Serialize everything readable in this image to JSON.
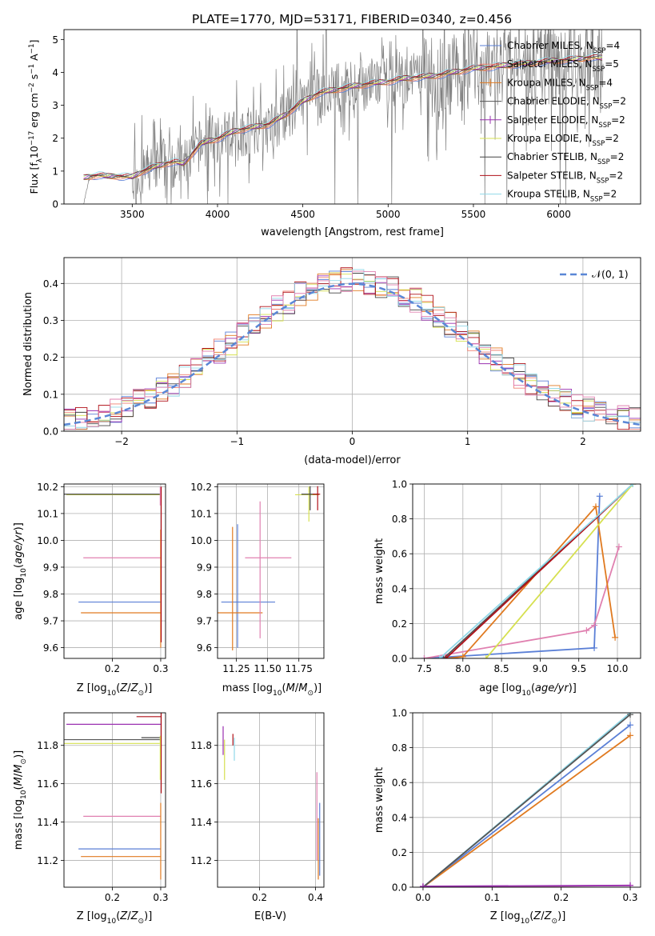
{
  "figure": {
    "title": "PLATE=1770, MJD=53171, FIBERID=0340, z=0.456"
  },
  "colors": {
    "chabrier_miles": "#5a7fd6",
    "salpeter_miles": "#f08070",
    "kroupa_miles": "#e07a20",
    "chabrier_elodie": "#555555",
    "salpeter_elodie": "#9a30b0",
    "kroupa_elodie": "#d6e050",
    "chabrier_stelib": "#444444",
    "salpeter_stelib": "#b01018",
    "kroupa_stelib": "#90d8e8",
    "gaussian": "#5a87d6",
    "spectrum": "#808080",
    "pink": "#e080b0",
    "grid": "#b0b0b0"
  },
  "chart_data": [
    {
      "id": "spectrum",
      "type": "line",
      "title": "PLATE=1770, MJD=53171, FIBERID=0340, z=0.456",
      "xlabel": "wavelength [Angstrom, rest frame]",
      "ylabel": "Flux [f_λ 10^-17 erg cm^-2 s^-1 A^-1]",
      "xlim": [
        3100,
        6480
      ],
      "ylim": [
        0,
        5.3
      ],
      "xticks": [
        3500,
        4000,
        4500,
        5000,
        5500,
        6000
      ],
      "yticks": [
        0,
        1,
        2,
        3,
        4,
        5
      ],
      "grid": false,
      "legend_position": "top-right",
      "legend": [
        "Chabrier MILES, N_SSP=4",
        "Salpeter MILES, N_SSP=5",
        "Kroupa MILES, N_SSP=4",
        "Chabrier ELODIE, N_SSP=2",
        "Salpeter ELODIE, N_SSP=2",
        "Kroupa ELODIE, N_SSP=2",
        "Chabrier STELIB, N_SSP=2",
        "Salpeter STELIB, N_SSP=2",
        "Kroupa STELIB, N_SSP=2"
      ],
      "series": [
        {
          "name": "data",
          "x": [
            3215,
            3250,
            3300,
            3350,
            3400,
            3450,
            3500,
            3550,
            3600,
            3650,
            3700,
            3750,
            3800,
            3850,
            3900,
            3950,
            4000,
            4100,
            4200,
            4300,
            4400,
            4500,
            4600,
            4700,
            4800,
            4900,
            5000,
            5100,
            5200,
            5300,
            5400,
            5500,
            5600,
            5700,
            5800,
            5900,
            6000,
            6100,
            6200,
            6260
          ],
          "y": [
            0.0,
            0.8,
            0.88,
            0.83,
            0.86,
            0.82,
            0.8,
            0.95,
            1.05,
            1.15,
            1.25,
            1.3,
            1.2,
            1.5,
            1.8,
            1.9,
            1.95,
            2.2,
            2.3,
            2.4,
            2.7,
            3.1,
            3.4,
            3.5,
            3.6,
            3.65,
            3.7,
            3.8,
            3.85,
            3.9,
            4.0,
            4.1,
            4.15,
            4.2,
            4.25,
            4.3,
            4.35,
            4.4,
            4.45,
            4.4
          ]
        },
        {
          "name": "model",
          "x": [
            3215,
            3250,
            3300,
            3350,
            3400,
            3450,
            3500,
            3550,
            3600,
            3650,
            3700,
            3750,
            3800,
            3850,
            3900,
            3950,
            4000,
            4100,
            4200,
            4300,
            4400,
            4500,
            4600,
            4700,
            4800,
            4900,
            5000,
            5100,
            5200,
            5300,
            5400,
            5500,
            5600,
            5700,
            5800,
            5900,
            6000,
            6100,
            6200,
            6260
          ],
          "y": [
            0.8,
            0.84,
            0.87,
            0.84,
            0.85,
            0.83,
            0.82,
            0.97,
            1.07,
            1.16,
            1.24,
            1.28,
            1.22,
            1.52,
            1.82,
            1.92,
            1.98,
            2.22,
            2.32,
            2.42,
            2.72,
            3.12,
            3.38,
            3.48,
            3.58,
            3.66,
            3.72,
            3.82,
            3.86,
            3.92,
            4.02,
            4.12,
            4.16,
            4.22,
            4.26,
            4.32,
            4.36,
            4.4,
            4.46,
            4.42
          ]
        }
      ]
    },
    {
      "id": "residuals",
      "type": "line",
      "xlabel": "(data-model)/error",
      "ylabel": "Normed distribution",
      "xlim": [
        -2.5,
        2.5
      ],
      "ylim": [
        0,
        0.47
      ],
      "xticks": [
        -2,
        -1,
        0,
        1,
        2
      ],
      "yticks": [
        0.0,
        0.1,
        0.2,
        0.3,
        0.4
      ],
      "grid": true,
      "legend_position": "top-right",
      "legend": [
        "𝒩(0, 1)"
      ],
      "series": [
        {
          "name": "𝒩(0, 1)",
          "style": "dashed",
          "mean": 0,
          "sigma": 1
        }
      ],
      "histogram_bin_width": 0.1,
      "histogram_note_count": 9
    },
    {
      "id": "age_vs_Z",
      "type": "scatter",
      "xlabel": "Z [log10(Z/Z_sun)]",
      "ylabel": "age [log10(age/yr)]",
      "xlim": [
        0.1,
        0.31
      ],
      "ylim": [
        9.56,
        10.21
      ],
      "xticks": [
        0.2,
        0.3
      ],
      "yticks": [
        9.6,
        9.7,
        9.8,
        9.9,
        10.0,
        10.1,
        10.2
      ],
      "grid": true,
      "hlines": [
        {
          "y": 10.17,
          "x0": 0.105,
          "x1": 0.3,
          "color": "kroupa_elodie"
        },
        {
          "y": 10.172,
          "x0": 0.1,
          "x1": 0.3,
          "color": "chabrier_stelib"
        },
        {
          "y": 9.935,
          "x0": 0.14,
          "x1": 0.3,
          "color": "pink"
        },
        {
          "y": 9.77,
          "x0": 0.13,
          "x1": 0.3,
          "color": "chabrier_miles"
        },
        {
          "y": 9.73,
          "x0": 0.135,
          "x1": 0.3,
          "color": "kroupa_miles"
        }
      ],
      "vlines": [
        {
          "x": 0.3,
          "y0": 9.6,
          "y1": 10.04,
          "color": "kroupa_miles"
        },
        {
          "x": 0.301,
          "y0": 9.62,
          "y1": 10.2,
          "color": "salpeter_stelib"
        },
        {
          "x": 0.299,
          "y0": 10.13,
          "y1": 10.2,
          "color": "pink"
        }
      ]
    },
    {
      "id": "age_vs_mass",
      "type": "scatter",
      "xlabel": "mass [log10(M/M_sun)]",
      "xlim": [
        11.1,
        11.95
      ],
      "ylim": [
        9.56,
        10.21
      ],
      "xticks": [
        11.25,
        11.5,
        11.75
      ],
      "yticks": [
        9.6,
        9.7,
        9.8,
        9.9,
        10.0,
        10.1,
        10.2
      ],
      "grid": true,
      "crosses": [
        {
          "x": 11.26,
          "y": 9.77,
          "xerr": [
            0.13,
            0.3
          ],
          "yerr": [
            0.17,
            0.29
          ],
          "color": "chabrier_miles"
        },
        {
          "x": 11.22,
          "y": 9.73,
          "xerr": [
            0.12,
            0.24
          ],
          "yerr": [
            0.14,
            0.32
          ],
          "color": "kroupa_miles"
        },
        {
          "x": 11.44,
          "y": 9.935,
          "xerr": [
            0.12,
            0.25
          ],
          "yerr": [
            0.3,
            0.21
          ],
          "color": "pink"
        },
        {
          "x": 11.83,
          "y": 10.17,
          "xerr": [
            0.11,
            0.08
          ],
          "yerr": [
            0.1,
            0.03
          ],
          "color": "kroupa_elodie"
        },
        {
          "x": 11.84,
          "y": 10.172,
          "xerr": [
            0.07,
            0.07
          ],
          "yerr": [
            0.06,
            0.03
          ],
          "color": "chabrier_stelib"
        },
        {
          "x": 11.9,
          "y": 10.172,
          "xerr": [
            0.04,
            0.02
          ],
          "yerr": [
            0.06,
            0.03
          ],
          "color": "salpeter_stelib"
        }
      ]
    },
    {
      "id": "massweight_vs_age",
      "type": "line",
      "xlabel": "age [log10(age/yr)]",
      "ylabel": "mass weight",
      "xlim": [
        7.35,
        10.3
      ],
      "ylim": [
        0,
        1
      ],
      "xticks": [
        7.5,
        8.0,
        8.5,
        9.0,
        9.5,
        10.0
      ],
      "yticks": [
        0.0,
        0.2,
        0.4,
        0.6,
        0.8,
        1.0
      ],
      "grid": true,
      "series": [
        {
          "name": "Chabrier MILES",
          "color": "chabrier_miles",
          "x": [
            7.5,
            9.7,
            9.77
          ],
          "y": [
            0.0,
            0.06,
            0.93
          ]
        },
        {
          "name": "Salpeter MILES",
          "color": "pink",
          "x": [
            7.5,
            9.6,
            9.7,
            10.02
          ],
          "y": [
            0.0,
            0.16,
            0.19,
            0.64
          ]
        },
        {
          "name": "Kroupa MILES",
          "color": "kroupa_miles",
          "x": [
            7.8,
            8.0,
            9.72,
            9.97
          ],
          "y": [
            0.0,
            0.01,
            0.87,
            0.12
          ]
        },
        {
          "name": "Chabrier ELODIE",
          "color": "chabrier_elodie",
          "x": [
            7.75,
            10.2
          ],
          "y": [
            0.0,
            1.0
          ]
        },
        {
          "name": "Salpeter STELIB",
          "color": "salpeter_stelib",
          "x": [
            7.78,
            10.2
          ],
          "y": [
            0.0,
            1.0
          ]
        },
        {
          "name": "Kroupa ELODIE",
          "color": "kroupa_elodie",
          "x": [
            8.3,
            10.2
          ],
          "y": [
            0.0,
            1.0
          ]
        },
        {
          "name": "Kroupa STELIB",
          "color": "kroupa_stelib",
          "x": [
            7.7,
            10.2
          ],
          "y": [
            0.0,
            1.0
          ]
        }
      ]
    },
    {
      "id": "mass_vs_Z",
      "type": "scatter",
      "xlabel": "Z [log10(Z/Z_sun)]",
      "ylabel": "mass [log10(M/M_sun)]",
      "xlim": [
        0.1,
        0.31
      ],
      "ylim": [
        11.06,
        11.97
      ],
      "xticks": [
        0.2,
        0.3
      ],
      "yticks": [
        11.2,
        11.4,
        11.6,
        11.8
      ],
      "grid": true,
      "hlines": [
        {
          "y": 11.91,
          "x0": 0.105,
          "x1": 0.3,
          "color": "salpeter_elodie"
        },
        {
          "y": 11.95,
          "x0": 0.25,
          "x1": 0.3,
          "color": "salpeter_stelib"
        },
        {
          "y": 11.84,
          "x0": 0.26,
          "x1": 0.3,
          "color": "chabrier_stelib"
        },
        {
          "y": 11.83,
          "x0": 0.1,
          "x1": 0.3,
          "color": "chabrier_elodie"
        },
        {
          "y": 11.81,
          "x0": 0.1,
          "x1": 0.3,
          "color": "kroupa_elodie"
        },
        {
          "y": 11.43,
          "x0": 0.14,
          "x1": 0.3,
          "color": "pink"
        },
        {
          "y": 11.26,
          "x0": 0.13,
          "x1": 0.3,
          "color": "chabrier_miles"
        },
        {
          "y": 11.22,
          "x0": 0.135,
          "x1": 0.3,
          "color": "kroupa_miles"
        }
      ],
      "vlines": [
        {
          "x": 0.3,
          "y0": 11.1,
          "y1": 11.5,
          "color": "kroupa_miles"
        },
        {
          "x": 0.301,
          "y0": 11.55,
          "y1": 11.97,
          "color": "salpeter_stelib"
        },
        {
          "x": 0.299,
          "y0": 11.62,
          "y1": 11.85,
          "color": "kroupa_elodie"
        }
      ]
    },
    {
      "id": "mass_vs_EBV",
      "type": "scatter",
      "xlabel": "E(B-V)",
      "xlim": [
        0.05,
        0.43
      ],
      "ylim": [
        11.06,
        11.97
      ],
      "xticks": [
        0.2,
        0.4
      ],
      "yticks": [
        11.2,
        11.4,
        11.6,
        11.8
      ],
      "grid": true,
      "vlines": [
        {
          "x": 0.07,
          "y0": 11.75,
          "y1": 11.9,
          "color": "salpeter_elodie"
        },
        {
          "x": 0.075,
          "y0": 11.62,
          "y1": 11.83,
          "color": "kroupa_elodie"
        },
        {
          "x": 0.105,
          "y0": 11.8,
          "y1": 11.86,
          "color": "salpeter_stelib"
        },
        {
          "x": 0.11,
          "y0": 11.72,
          "y1": 11.84,
          "color": "kroupa_stelib"
        },
        {
          "x": 0.405,
          "y0": 11.2,
          "y1": 11.66,
          "color": "pink"
        },
        {
          "x": 0.41,
          "y0": 11.1,
          "y1": 11.42,
          "color": "kroupa_miles"
        },
        {
          "x": 0.415,
          "y0": 11.12,
          "y1": 11.5,
          "color": "chabrier_miles"
        }
      ]
    },
    {
      "id": "massweight_vs_Z",
      "type": "line",
      "xlabel": "Z [log10(Z/Z_sun)]",
      "ylabel": "mass weight",
      "xlim": [
        -0.015,
        0.315
      ],
      "ylim": [
        0,
        1
      ],
      "xticks": [
        0.0,
        0.1,
        0.2,
        0.3
      ],
      "yticks": [
        0.0,
        0.2,
        0.4,
        0.6,
        0.8,
        1.0
      ],
      "grid": true,
      "series": [
        {
          "name": "Chabrier MILES",
          "color": "chabrier_miles",
          "x": [
            0.0,
            0.3
          ],
          "y": [
            0.0,
            0.93
          ]
        },
        {
          "name": "Kroupa MILES",
          "color": "kroupa_miles",
          "x": [
            0.0,
            0.3
          ],
          "y": [
            0.0,
            0.87
          ]
        },
        {
          "name": "Kroupa STELIB",
          "color": "kroupa_stelib",
          "x": [
            0.0,
            0.3
          ],
          "y": [
            0.0,
            1.0
          ]
        },
        {
          "name": "Chabrier ELODIE",
          "color": "chabrier_elodie",
          "x": [
            0.0,
            0.3
          ],
          "y": [
            0.0,
            0.99
          ]
        },
        {
          "name": "Salpeter MILES",
          "color": "pink",
          "x": [
            0.0,
            0.3
          ],
          "y": [
            0.0,
            0.01
          ]
        },
        {
          "name": "Salpeter ELODIE",
          "color": "salpeter_elodie",
          "x": [
            0.0,
            0.3
          ],
          "y": [
            0.005,
            0.01
          ]
        }
      ]
    }
  ]
}
